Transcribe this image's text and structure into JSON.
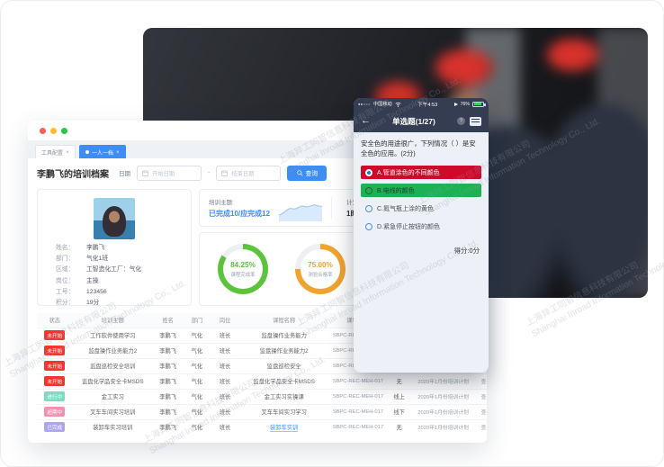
{
  "colors": {
    "accent": "#3d8df5",
    "donut_green": "#5cc43c",
    "donut_orange": "#f0a32f",
    "option_wrong_bg": "#ce0a2b",
    "option_correct_bg": "#1cb254",
    "phone_header_bg": "#353d52",
    "badge_red": "#f5342e"
  },
  "icons": {
    "search": "⌕",
    "calendar": "▦",
    "back": "←",
    "help": "?",
    "answer-sheet": "answer-sheet-card",
    "close": "×",
    "signal": "●●○○○"
  },
  "window": {
    "tabs": [
      {
        "label": "工具配置",
        "close": "×",
        "active": false
      },
      {
        "label": "一人一档",
        "close": "×",
        "active": true
      }
    ],
    "title": "李鹏飞的培训档案",
    "date_label": "日期",
    "date_start_placeholder": "开始日期",
    "date_end_placeholder": "结束日期",
    "date_separator": "-",
    "search_button": "查询"
  },
  "profile": {
    "fields": [
      {
        "label": "姓名：",
        "value": "李鹏飞"
      },
      {
        "label": "部门：",
        "value": "气化1班"
      },
      {
        "label": "区域：",
        "value": "工智造化工厂：气化"
      },
      {
        "label": "岗位：",
        "value": "主操"
      },
      {
        "label": "工号：",
        "value": "123456"
      },
      {
        "label": "积分：",
        "value": "19分"
      }
    ]
  },
  "stats": {
    "topic_label": "培训主题:",
    "topic_value": "已完成10/应完成12",
    "plan_label": "计划学习时长",
    "plan_value": "1时34分",
    "donuts": [
      {
        "value": "84.25%",
        "pct": 84.25,
        "label": "课程完成率",
        "color": "#5cc43c"
      },
      {
        "value": "75.00%",
        "pct": 75.0,
        "label": "测验合格率",
        "color": "#f0a32f"
      }
    ]
  },
  "table": {
    "headers": [
      "状态",
      "培训主题",
      "姓名",
      "部门",
      "岗位",
      "课程名称",
      "课程编号",
      "",
      "",
      ""
    ],
    "rows": [
      {
        "status": "未开始",
        "type": "red",
        "topic": "工作软件使用学习",
        "name": "李鹏飞",
        "dept": "气化",
        "post": "班长",
        "course": "监盘操作业务能力",
        "link": false,
        "code": "SBPC-REC-MEH-017",
        "mode": "",
        "plan": "",
        "action": ""
      },
      {
        "status": "未开始",
        "type": "red",
        "topic": "监盘操作业务能力2",
        "name": "李鹏飞",
        "dept": "气化",
        "post": "班长",
        "course": "监盘操作业务能力2",
        "link": false,
        "code": "SBPC-REC-MEH-017",
        "mode": "",
        "plan": "",
        "action": ""
      },
      {
        "status": "未开始",
        "type": "red",
        "topic": "监盘巡检安全培训",
        "name": "李鹏飞",
        "dept": "气化",
        "post": "班长",
        "course": "监盘巡检安全",
        "link": false,
        "code": "SBPC-REC-MEH-017",
        "mode": "",
        "plan": "",
        "action": ""
      },
      {
        "status": "未开始",
        "type": "red",
        "topic": "监盘化学品安全卡MSDS",
        "name": "李鹏飞",
        "dept": "气化",
        "post": "班长",
        "course": "监盘化学品安全卡MSDS",
        "link": false,
        "code": "SBPC-REC-MEH-017",
        "mode": "无",
        "plan": "2020年1月份培训计划",
        "action": "查看"
      },
      {
        "status": "进行中",
        "type": "teal",
        "topic": "金工实习",
        "name": "李鹏飞",
        "dept": "气化",
        "post": "班长",
        "course": "金工实习实操课",
        "link": false,
        "code": "SBPC-REC-MEH-017",
        "mode": "线上",
        "plan": "2020年1月份培训计划",
        "action": "查看"
      },
      {
        "status": "超期中",
        "type": "pink",
        "topic": "叉车车间实习培训",
        "name": "李鹏飞",
        "dept": "气化",
        "post": "班长",
        "course": "叉车车间实习学习",
        "link": false,
        "code": "SBPC-REC-MEH-017",
        "mode": "线下",
        "plan": "2020年1月份培训计划",
        "action": "查看"
      },
      {
        "status": "已完成",
        "type": "purple",
        "topic": "装卸车实习培训",
        "name": "李鹏飞",
        "dept": "气化",
        "post": "班长",
        "course": "装卸车实训",
        "link": true,
        "code": "SBPC-REC-MEH-017",
        "mode": "无",
        "plan": "2020年1月份培训计划",
        "action": "查看"
      }
    ]
  },
  "phone": {
    "status": {
      "signal": "●●○○○",
      "carrier": "中国移动",
      "time": "下午4:53",
      "battery": "76%"
    },
    "header": {
      "back": "←",
      "title": "单选题(1/27)",
      "help": "?"
    },
    "question": "安全色的用途很广，下列情况（ ）是安全色的应用。(2分)",
    "options": [
      {
        "label": "A.管道涂色的不同颜色",
        "state": "wrong"
      },
      {
        "label": "B.电线的颜色",
        "state": "correct"
      },
      {
        "label": "C.氮气瓶上涂的黄色",
        "state": "normal"
      },
      {
        "label": "D.紧急停止按钮的颜色",
        "state": "normal"
      }
    ],
    "score": "得分:0分"
  },
  "watermark": {
    "cn": "上海异工同智信息科技有限公司",
    "en": "Shanghai Inroad Information Technology Co., Ltd."
  }
}
